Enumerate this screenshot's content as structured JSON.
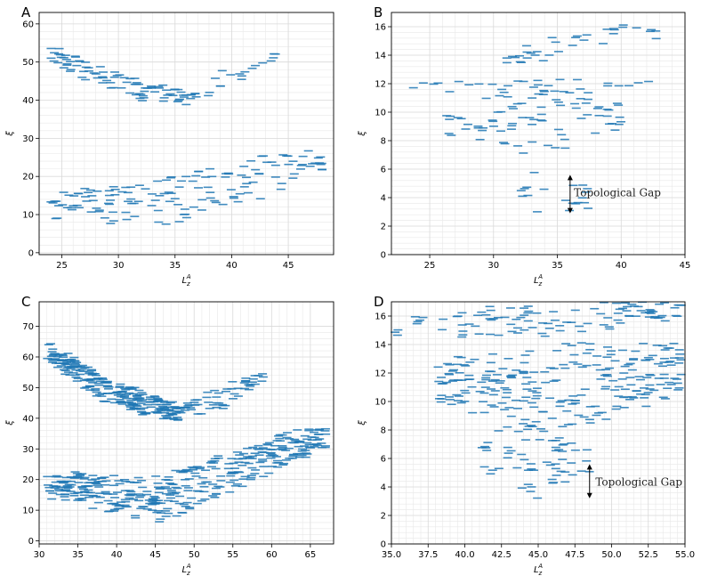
{
  "chart_data": [
    {
      "panel": "A",
      "type": "scatter",
      "marker": "horizontal-dash",
      "color": "#1f77b4",
      "xlabel": "L_z^A",
      "ylabel": "ξ",
      "xlim": [
        23,
        49
      ],
      "ylim": [
        -0.5,
        63
      ],
      "xticks": [
        25,
        30,
        35,
        40,
        45
      ],
      "yticks": [
        0,
        10,
        20,
        30,
        40,
        50,
        60
      ],
      "grid": true,
      "bands": [
        {
          "x": [
            24,
            32.5,
            36
          ],
          "y": [
            52,
            42,
            41
          ],
          "spread": 3.5,
          "count": 90
        },
        {
          "x": [
            36,
            41,
            44
          ],
          "y": [
            41,
            47,
            52
          ],
          "spread": 3,
          "count": 24
        },
        {
          "x": [
            24,
            35,
            48
          ],
          "y": [
            12,
            14,
            24
          ],
          "spread": 7,
          "count": 150
        }
      ]
    },
    {
      "panel": "B",
      "type": "scatter",
      "marker": "horizontal-dash",
      "color": "#1f77b4",
      "xlabel": "L_z^A",
      "ylabel": "ξ",
      "xlim": [
        22,
        45
      ],
      "ylim": [
        0,
        17
      ],
      "xticks": [
        25,
        30,
        35,
        40,
        45
      ],
      "yticks": [
        0,
        2,
        4,
        6,
        8,
        10,
        12,
        14,
        16
      ],
      "grid": true,
      "bands": [
        {
          "x": [
            23.5,
            32,
            43
          ],
          "y": [
            11.8,
            11.8,
            12
          ],
          "spread": 0.6,
          "count": 30
        },
        {
          "x": [
            26,
            35,
            40
          ],
          "y": [
            9.5,
            9.5,
            9.8
          ],
          "spread": 2.5,
          "count": 80
        },
        {
          "x": [
            30,
            35,
            37.5
          ],
          "y": [
            5.5,
            4,
            4
          ],
          "spread": 1.5,
          "count": 20
        },
        {
          "x": [
            31,
            37,
            43
          ],
          "y": [
            14,
            15,
            15.5
          ],
          "spread": 1.2,
          "count": 35
        }
      ],
      "annotations": [
        {
          "text": "Topological Gap",
          "arrow_x": 36,
          "arrow_y": [
            2.9,
            5.6
          ],
          "text_x": 36.3,
          "text_y": 4.1
        }
      ]
    },
    {
      "panel": "C",
      "type": "scatter",
      "marker": "horizontal-dash",
      "color": "#1f77b4",
      "xlabel": "L_z^A",
      "ylabel": "ξ",
      "xlim": [
        30,
        68
      ],
      "ylim": [
        -1,
        78
      ],
      "xticks": [
        30,
        35,
        40,
        45,
        50,
        55,
        60,
        65
      ],
      "yticks": [
        0,
        10,
        20,
        30,
        40,
        50,
        60,
        70
      ],
      "grid": true,
      "bands": [
        {
          "x": [
            31,
            40,
            48
          ],
          "y": [
            62,
            47,
            42
          ],
          "spread": 5,
          "count": 260
        },
        {
          "x": [
            48,
            53,
            59
          ],
          "y": [
            42,
            46,
            54
          ],
          "spread": 4,
          "count": 60
        },
        {
          "x": [
            31,
            46,
            67
          ],
          "y": [
            18,
            14,
            35
          ],
          "spread": 8,
          "count": 420
        }
      ]
    },
    {
      "panel": "D",
      "type": "scatter",
      "marker": "horizontal-dash",
      "color": "#1f77b4",
      "xlabel": "L_z^A",
      "ylabel": "ξ",
      "xlim": [
        35,
        55
      ],
      "ylim": [
        0,
        17
      ],
      "xticks": [
        35.0,
        37.5,
        40.0,
        42.5,
        45.0,
        47.5,
        50.0,
        52.5,
        55.0
      ],
      "ytick_values": [
        0,
        2,
        4,
        6,
        8,
        10,
        12,
        14,
        16
      ],
      "xtick_labels": [
        "35.0",
        "37.5",
        "40.0",
        "42.5",
        "45.0",
        "47.5",
        "50.0",
        "52.5",
        "55.0"
      ],
      "grid": true,
      "bands": [
        {
          "x": [
            35,
            45,
            55
          ],
          "y": [
            15.2,
            15.8,
            16.4
          ],
          "spread": 1.2,
          "count": 110
        },
        {
          "x": [
            38,
            45,
            55
          ],
          "y": [
            11.5,
            10.5,
            12.5
          ],
          "spread": 3.2,
          "count": 260
        },
        {
          "x": [
            41,
            46,
            48.5
          ],
          "y": [
            6.5,
            5.5,
            6
          ],
          "spread": 2.5,
          "count": 60
        }
      ],
      "annotations": [
        {
          "text": "Topological Gap",
          "arrow_x": 48.5,
          "arrow_y": [
            3.2,
            5.6
          ],
          "text_x": 48.9,
          "text_y": 4.1
        }
      ]
    }
  ]
}
